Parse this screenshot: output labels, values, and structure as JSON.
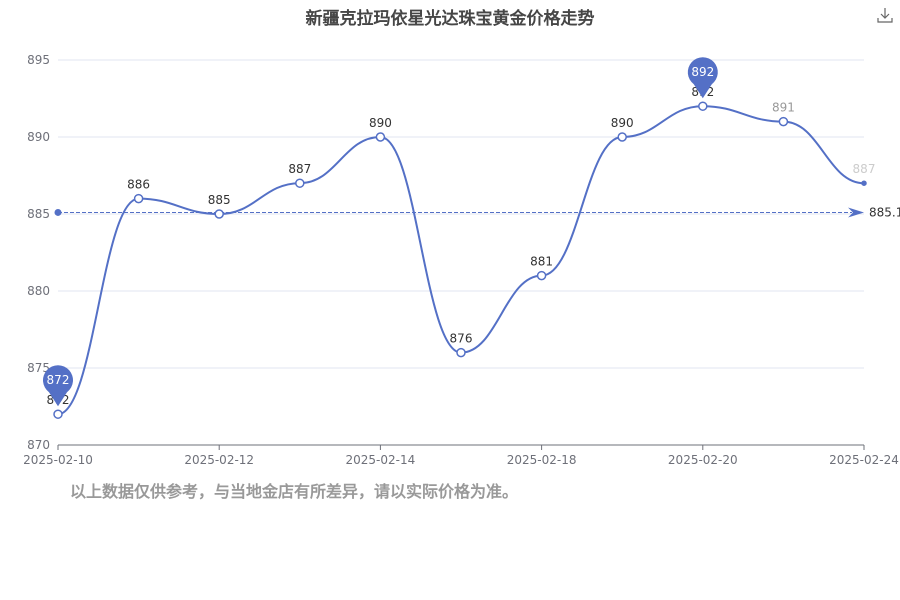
{
  "chart_data": {
    "type": "line",
    "title": "新疆克拉玛依星光达珠宝黄金价格走势",
    "categories": [
      "2025-02-10",
      "",
      "2025-02-12",
      "",
      "2025-02-14",
      "",
      "2025-02-18",
      "",
      "2025-02-20",
      "",
      "2025-02-24"
    ],
    "values": [
      872,
      886,
      885,
      887,
      890,
      876,
      881,
      890,
      892,
      891,
      887
    ],
    "ylim": [
      870,
      895
    ],
    "yticks": [
      870,
      875,
      880,
      885,
      890,
      895
    ],
    "grid": true,
    "smooth": true,
    "mark_points": {
      "max": {
        "label": "892",
        "value": 892
      },
      "min": {
        "label": "872",
        "value": 872
      }
    },
    "mark_line": {
      "type": "average",
      "value": 885.1,
      "label": "885.1"
    },
    "colors": {
      "line": "#5470c6",
      "grid": "#e0e6f1",
      "axis": "#6e7079"
    }
  },
  "toolbox": {
    "download_icon": "download-icon"
  },
  "note": "以上数据仅供参考，与当地金店有所差异，请以实际价格为准。"
}
